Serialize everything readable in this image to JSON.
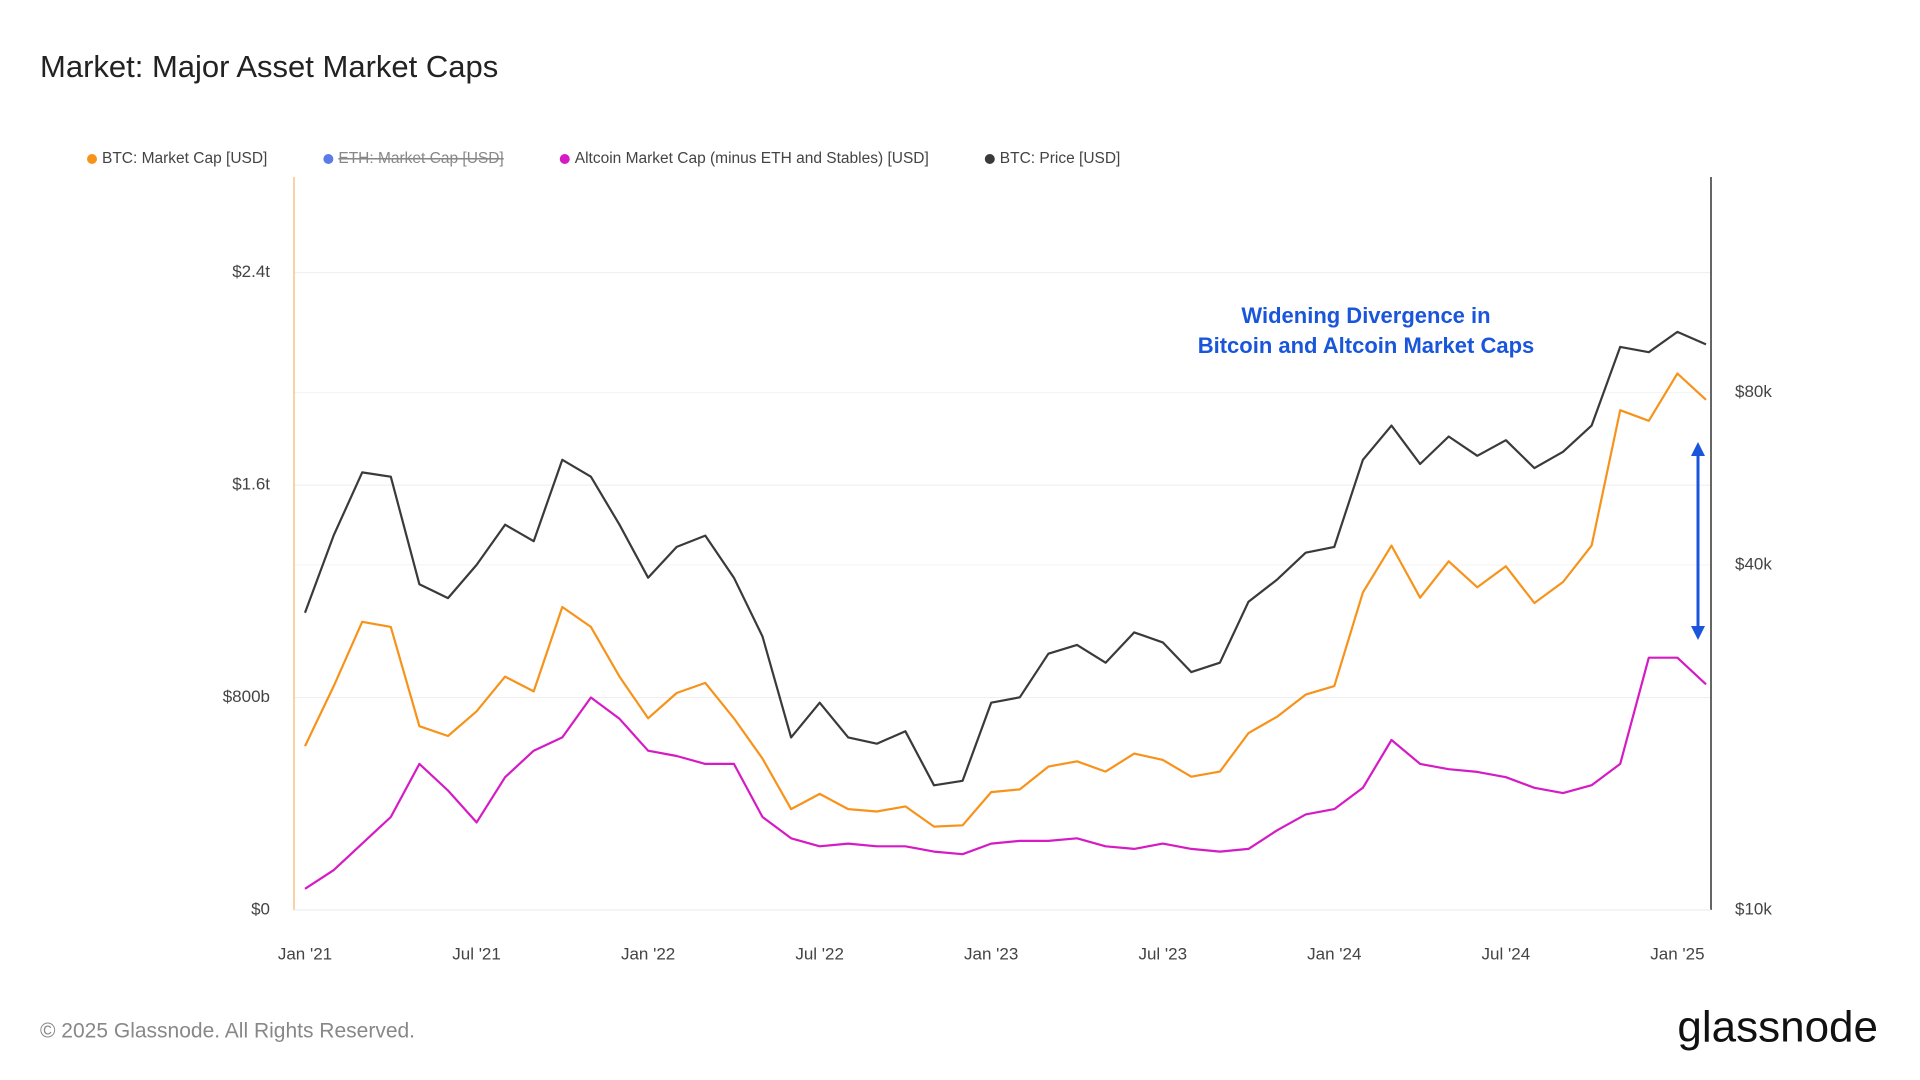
{
  "title": "Market: Major Asset Market Caps",
  "chart_data": {
    "type": "line",
    "categories": [
      "Jan '21",
      null,
      null,
      null,
      null,
      null,
      "Jul '21",
      null,
      null,
      null,
      null,
      null,
      "Jan '22",
      null,
      null,
      null,
      null,
      null,
      "Jul '22",
      null,
      null,
      null,
      null,
      null,
      "Jan '23",
      null,
      null,
      null,
      null,
      null,
      "Jul '23",
      null,
      null,
      null,
      null,
      null,
      "Jan '24",
      null,
      null,
      null,
      null,
      null,
      "Jul '24",
      null,
      null,
      null,
      null,
      null,
      "Jan '25",
      null
    ],
    "series": [
      {
        "name": "BTC: Market Cap [USD]",
        "color": "#f7931a",
        "values": [
          617000000000,
          842000000000,
          1085000000000,
          1066000000000,
          692000000000,
          655000000000,
          748000000000,
          879000000000,
          823000000000,
          1141000000000,
          1066000000000,
          879000000000,
          722000000000,
          817000000000,
          855000000000,
          722000000000,
          570000000000,
          380000000000,
          437000000000,
          380000000000,
          371000000000,
          390000000000,
          314000000000,
          319000000000,
          444000000000,
          454000000000,
          540000000000,
          560000000000,
          521000000000,
          589000000000,
          565000000000,
          502000000000,
          521000000000,
          666000000000,
          728000000000,
          811000000000,
          843000000000,
          1196000000000,
          1372000000000,
          1176000000000,
          1313000000000,
          1215000000000,
          1294000000000,
          1156000000000,
          1235000000000,
          1372000000000,
          1882000000000,
          1842000000000,
          2020000000000,
          1921000000000
        ]
      },
      {
        "name": "Altcoin Market Cap (minus ETH and Stables) [USD]",
        "color": "#d41bc4",
        "values": [
          80000000000,
          150000000000,
          250000000000,
          350000000000,
          550000000000,
          450000000000,
          330000000000,
          500000000000,
          600000000000,
          650000000000,
          800000000000,
          720000000000,
          600000000000,
          580000000000,
          550000000000,
          550000000000,
          350000000000,
          270000000000,
          240000000000,
          250000000000,
          240000000000,
          240000000000,
          220000000000,
          210000000000,
          250000000000,
          260000000000,
          260000000000,
          270000000000,
          240000000000,
          230000000000,
          250000000000,
          230000000000,
          220000000000,
          230000000000,
          300000000000,
          360000000000,
          380000000000,
          460000000000,
          640000000000,
          550000000000,
          530000000000,
          520000000000,
          500000000000,
          460000000000,
          440000000000,
          470000000000,
          550000000000,
          950000000000,
          950000000000,
          850000000000
        ]
      },
      {
        "name": "BTC: Price [USD]",
        "color": "#3a3a3a",
        "axis": "y2",
        "values": [
          33000,
          45000,
          58000,
          57000,
          37000,
          35000,
          40000,
          47000,
          44000,
          61000,
          57000,
          47000,
          38000,
          43000,
          45000,
          38000,
          30000,
          20000,
          23000,
          20000,
          19500,
          20500,
          16500,
          16800,
          23000,
          23500,
          28000,
          29000,
          27000,
          30500,
          29300,
          26000,
          27000,
          34500,
          37700,
          42000,
          43000,
          61000,
          70000,
          60000,
          67000,
          62000,
          66000,
          59000,
          63000,
          70000,
          96000,
          94000,
          102000,
          97000
        ]
      }
    ],
    "hidden_series": [
      {
        "name": "ETH: Market Cap [USD]",
        "color": "#5b7be6"
      }
    ],
    "ylim": [
      0,
      2760000000000
    ],
    "yticks": [
      {
        "value": 0,
        "label": "$0"
      },
      {
        "value": 800000000000,
        "label": "$800b"
      },
      {
        "value": 1600000000000,
        "label": "$1.6t"
      },
      {
        "value": 2400000000000,
        "label": "$2.4t"
      }
    ],
    "y2lim": [
      10000,
      190000
    ],
    "y2log": true,
    "y2ticks": [
      {
        "value": 10000,
        "label": "$10k"
      },
      {
        "value": 40000,
        "label": "$40k"
      },
      {
        "value": 80000,
        "label": "$80k"
      }
    ],
    "grid": true,
    "annotation": [
      "Widening Divergence in",
      "Bitcoin and Altcoin Market Caps"
    ]
  },
  "footer": {
    "copyright": "© 2025 Glassnode. All Rights Reserved.",
    "logo": "glassnode"
  }
}
